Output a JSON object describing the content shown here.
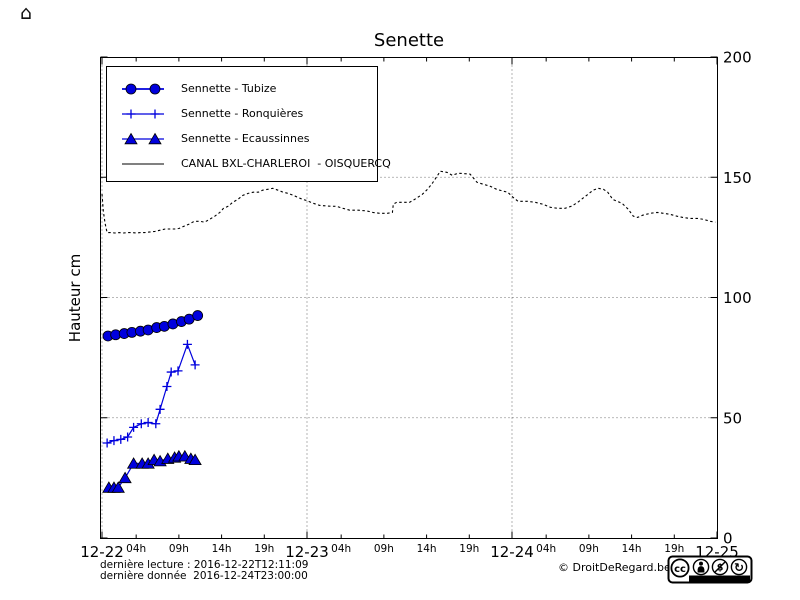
{
  "title": "Senette",
  "footer": {
    "last_read": "dernière lecture : 2016-12-22T12:11:09",
    "last_data": "dernière donnée  2016-12-24T23:00:00",
    "copyright": "© DroitDeRegard.be",
    "license": "CC BY-NC-SA",
    "license_labels": [
      "BY",
      "NC",
      "SA"
    ]
  },
  "chart_data": {
    "type": "line",
    "title": "Senette",
    "ylabel": "Hauteur cm",
    "ylim": [
      0,
      200
    ],
    "xlim_hours": [
      0,
      72
    ],
    "grid": "dotted",
    "legend_position": "upper left",
    "y_axis": {
      "label": "Hauteur cm",
      "ticks": [
        0,
        50,
        100,
        150,
        200
      ],
      "labels_side": "right"
    },
    "x_axis": {
      "start_date": "12-22",
      "major_ticks": [
        {
          "hour": 0,
          "label": "12-22"
        },
        {
          "hour": 24,
          "label": "12-23"
        },
        {
          "hour": 48,
          "label": "12-24"
        },
        {
          "hour": 72,
          "label": "12-25"
        }
      ],
      "minor_ticks": [
        {
          "hour": 4,
          "label": "04h"
        },
        {
          "hour": 9,
          "label": "09h"
        },
        {
          "hour": 14,
          "label": "14h"
        },
        {
          "hour": 19,
          "label": "19h"
        },
        {
          "hour": 28,
          "label": "04h"
        },
        {
          "hour": 33,
          "label": "09h"
        },
        {
          "hour": 38,
          "label": "14h"
        },
        {
          "hour": 43,
          "label": "19h"
        },
        {
          "hour": 52,
          "label": "04h"
        },
        {
          "hour": 57,
          "label": "09h"
        },
        {
          "hour": 62,
          "label": "14h"
        },
        {
          "hour": 67,
          "label": "19h"
        }
      ]
    },
    "series": [
      {
        "name": "Sennette - Tubize",
        "color": "#0000dd",
        "marker": "circle",
        "line_style": "solid",
        "line_width": 1.8,
        "points": [
          [
            0.7,
            84
          ],
          [
            1.6,
            84.5
          ],
          [
            2.6,
            85
          ],
          [
            3.5,
            85.5
          ],
          [
            4.5,
            86
          ],
          [
            5.4,
            86.5
          ],
          [
            6.4,
            87.5
          ],
          [
            7.3,
            88
          ],
          [
            8.3,
            89
          ],
          [
            9.3,
            90
          ],
          [
            10.2,
            91
          ],
          [
            11.2,
            92.5
          ]
        ]
      },
      {
        "name": "Sennette - Ronquières",
        "color": "#0000dd",
        "marker": "plus",
        "line_style": "solid",
        "line_width": 1.2,
        "points": [
          [
            0.6,
            39.5
          ],
          [
            1.4,
            40.5
          ],
          [
            2.2,
            41
          ],
          [
            3.0,
            42
          ],
          [
            3.7,
            46
          ],
          [
            4.6,
            47.5
          ],
          [
            5.4,
            48
          ],
          [
            6.3,
            47.5
          ],
          [
            6.8,
            53.5
          ],
          [
            7.6,
            63
          ],
          [
            8.1,
            69
          ],
          [
            8.9,
            69.5
          ],
          [
            10.0,
            80.5
          ],
          [
            10.9,
            72
          ]
        ]
      },
      {
        "name": "Sennette - Ecaussinnes",
        "color": "#0000dd",
        "marker": "triangle",
        "line_style": "solid",
        "line_width": 1.2,
        "points": [
          [
            0.8,
            21
          ],
          [
            1.4,
            21
          ],
          [
            1.9,
            21
          ],
          [
            2.7,
            25
          ],
          [
            3.7,
            31
          ],
          [
            4.7,
            31
          ],
          [
            5.4,
            31
          ],
          [
            6.1,
            32.5
          ],
          [
            6.8,
            32
          ],
          [
            7.7,
            33
          ],
          [
            8.5,
            33.5
          ],
          [
            9.0,
            34
          ],
          [
            9.7,
            34
          ],
          [
            10.4,
            33
          ],
          [
            10.9,
            32.5
          ]
        ]
      },
      {
        "name": "CANAL BXL-CHARLEROI  - OISQUERCQ",
        "color": "#000000",
        "marker": "none",
        "line_style": "dotted",
        "line_width": 1.1,
        "points": [
          [
            0,
            143
          ],
          [
            0.15,
            136
          ],
          [
            0.35,
            131
          ],
          [
            0.5,
            128.5
          ],
          [
            0.6,
            127
          ],
          [
            1,
            127
          ],
          [
            1.5,
            126.8
          ],
          [
            2,
            127
          ],
          [
            2.5,
            126.8
          ],
          [
            3,
            127
          ],
          [
            3.5,
            127
          ],
          [
            4,
            126.8
          ],
          [
            4.5,
            127
          ],
          [
            5,
            127
          ],
          [
            5.5,
            127.2
          ],
          [
            6.2,
            127.5
          ],
          [
            6.8,
            128
          ],
          [
            7.4,
            128.5
          ],
          [
            8,
            128.5
          ],
          [
            8.5,
            128.5
          ],
          [
            9,
            128.7
          ],
          [
            9.5,
            129.5
          ],
          [
            10.2,
            130.5
          ],
          [
            10.8,
            131.7
          ],
          [
            11.5,
            131.7
          ],
          [
            12,
            131.3
          ],
          [
            12.6,
            132.5
          ],
          [
            13.2,
            133.8
          ],
          [
            13.8,
            135.4
          ],
          [
            14.2,
            137
          ],
          [
            14.8,
            138
          ],
          [
            15.3,
            139.6
          ],
          [
            15.9,
            140.8
          ],
          [
            16.5,
            142.5
          ],
          [
            17.1,
            143.3
          ],
          [
            17.7,
            143.8
          ],
          [
            18.3,
            143.8
          ],
          [
            18.8,
            144.6
          ],
          [
            19.4,
            145
          ],
          [
            20,
            145.4
          ],
          [
            20.6,
            144.6
          ],
          [
            21.2,
            143.8
          ],
          [
            21.8,
            143.3
          ],
          [
            22.4,
            142.5
          ],
          [
            22.9,
            141.7
          ],
          [
            23.5,
            140.8
          ],
          [
            24,
            140.3
          ],
          [
            24.7,
            139.2
          ],
          [
            25.5,
            138.3
          ],
          [
            26.5,
            138
          ],
          [
            27.5,
            137.9
          ],
          [
            28.2,
            137.1
          ],
          [
            29,
            136.3
          ],
          [
            30,
            136.3
          ],
          [
            31,
            136
          ],
          [
            31.7,
            135.4
          ],
          [
            32.5,
            135
          ],
          [
            33.4,
            135
          ],
          [
            34,
            135.4
          ],
          [
            34.1,
            138.8
          ],
          [
            34.5,
            139.6
          ],
          [
            35.2,
            139.6
          ],
          [
            36,
            139.6
          ],
          [
            36.6,
            140.8
          ],
          [
            37.5,
            142.9
          ],
          [
            38,
            144.6
          ],
          [
            38.6,
            147.1
          ],
          [
            39,
            149.2
          ],
          [
            39.6,
            152.5
          ],
          [
            40.4,
            152
          ],
          [
            41,
            150.8
          ],
          [
            41.7,
            151.7
          ],
          [
            43.1,
            151.3
          ],
          [
            43.9,
            147.9
          ],
          [
            44.6,
            147.1
          ],
          [
            45.4,
            146.3
          ],
          [
            46.2,
            145
          ],
          [
            47,
            144.2
          ],
          [
            47.5,
            143.8
          ],
          [
            48.1,
            141.7
          ],
          [
            48.7,
            140
          ],
          [
            49.8,
            140
          ],
          [
            50.7,
            139.6
          ],
          [
            51.6,
            138.8
          ],
          [
            52.5,
            137.5
          ],
          [
            53.3,
            137.1
          ],
          [
            54.2,
            137.1
          ],
          [
            55,
            138
          ],
          [
            55.7,
            139.6
          ],
          [
            56.3,
            141.3
          ],
          [
            56.9,
            142.9
          ],
          [
            57.5,
            144.6
          ],
          [
            58.1,
            145.4
          ],
          [
            58.7,
            145
          ],
          [
            59.2,
            143.8
          ],
          [
            59.8,
            140.8
          ],
          [
            60.3,
            140
          ],
          [
            60.6,
            139.6
          ],
          [
            61,
            138.8
          ],
          [
            61.6,
            136.7
          ],
          [
            62.2,
            133.8
          ],
          [
            62.7,
            133.3
          ],
          [
            63.3,
            134.2
          ],
          [
            64.2,
            135
          ],
          [
            65,
            135.4
          ],
          [
            65.7,
            135
          ],
          [
            66.5,
            134.6
          ],
          [
            67.3,
            133.8
          ],
          [
            68,
            133.3
          ],
          [
            68.8,
            132.9
          ],
          [
            69.7,
            132.9
          ],
          [
            70.4,
            132.5
          ],
          [
            71.2,
            131.7
          ],
          [
            71.8,
            131.3
          ]
        ]
      }
    ]
  }
}
